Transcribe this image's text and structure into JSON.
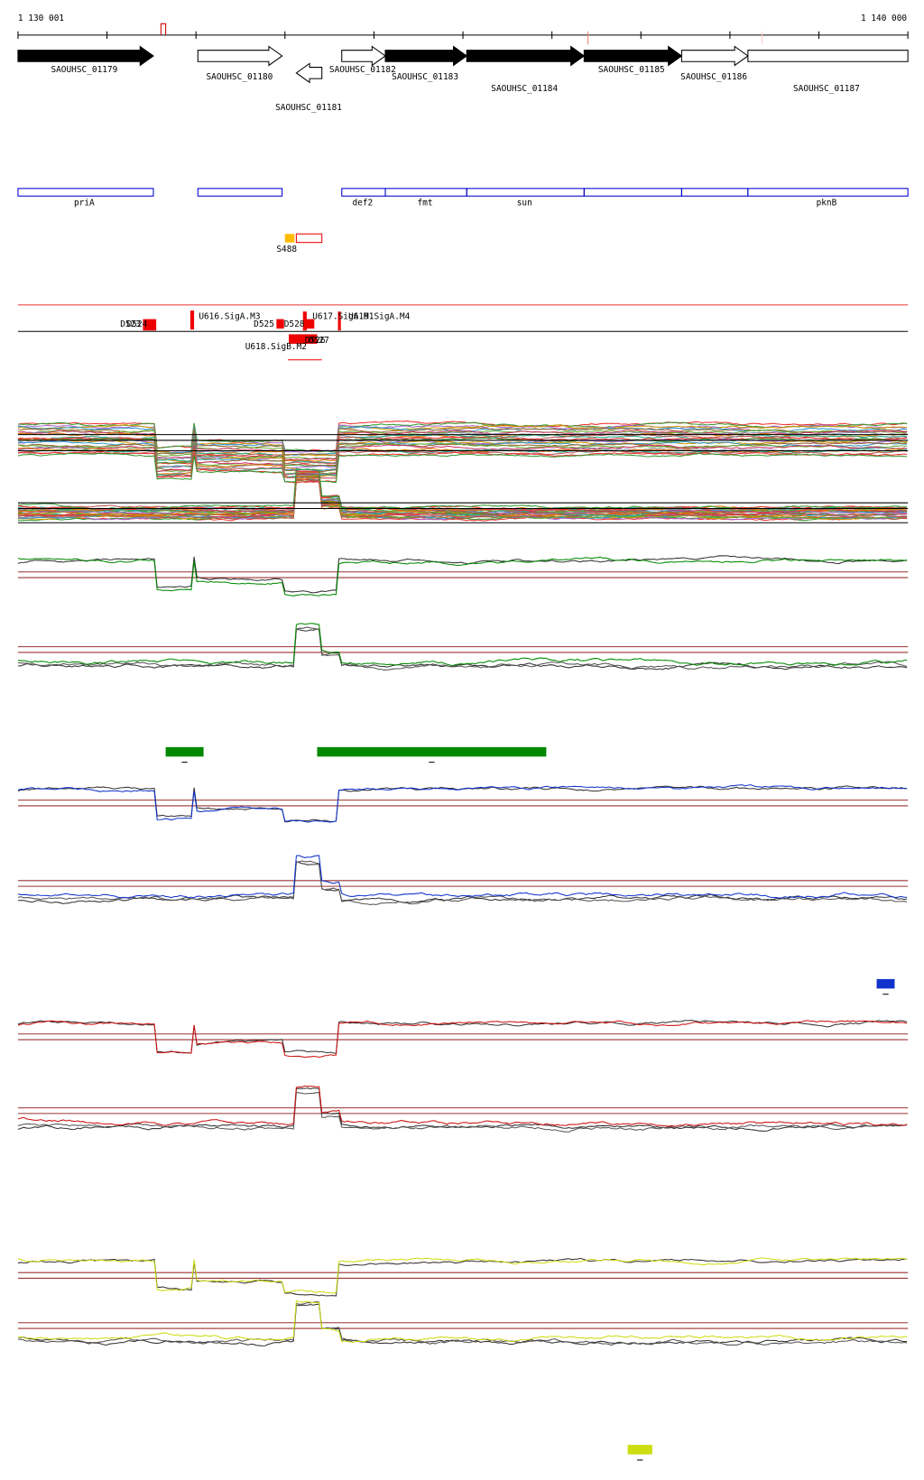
{
  "header": {
    "start": "1 130 001",
    "end": "1 140 000"
  },
  "genes": [
    {
      "label": "SAOUHSC_01179"
    },
    {
      "label": "SAOUHSC_01180"
    },
    {
      "label": "SAOUHSC_01181"
    },
    {
      "label": "SAOUHSC_01182"
    },
    {
      "label": "SAOUHSC_01183"
    },
    {
      "label": "SAOUHSC_01184"
    },
    {
      "label": "SAOUHSC_01185"
    },
    {
      "label": "SAOUHSC_01186"
    },
    {
      "label": "SAOUHSC_01187"
    }
  ],
  "operons": {
    "labels": [
      "priA",
      "def2",
      "fmt",
      "sun",
      "pknB"
    ]
  },
  "srna": {
    "label": "S488"
  },
  "promoters": {
    "labels": [
      "D523",
      "D524",
      "U616.SigA.M3",
      "D525",
      "D528",
      "U617.SigA.M1",
      "U619.SigA.M4",
      "D526",
      "D527",
      "U618.SigB.M2"
    ]
  }
}
